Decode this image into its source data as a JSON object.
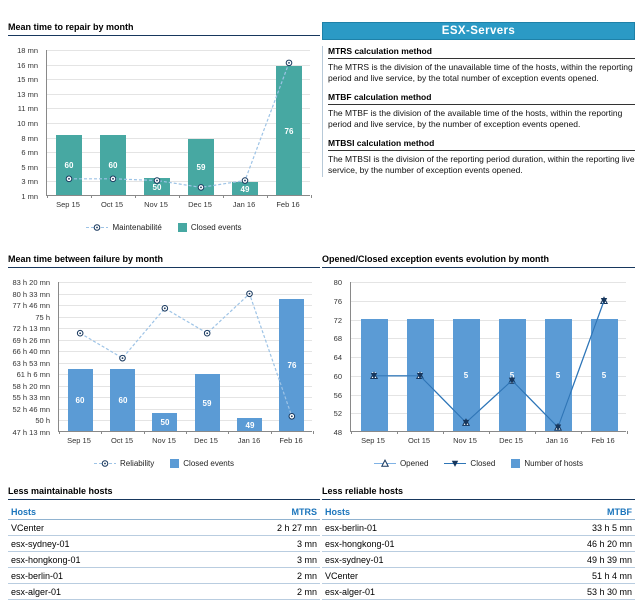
{
  "header": {
    "title": "ESX-Servers"
  },
  "methods": [
    {
      "heading": "MTRS calculation method",
      "body": "The MTRS is the division of the unavailable time of the hosts, within the reporting period and live service, by the total number of exception events opened."
    },
    {
      "heading": "MTBF calculation method",
      "body": "The MTBF is the division of the available time of the hosts, within the reporting period and live service, by the number of exception events opened."
    },
    {
      "heading": "MTBSI calculation method",
      "body": "The MTBSI is the division of the reporting period duration, within the reporting live service, by the number of exception events opened."
    }
  ],
  "chart_data": [
    {
      "type": "bar+line",
      "title": "Mean time to repair by month",
      "categories": [
        "Sep 15",
        "Oct 15",
        "Nov 15",
        "Dec 15",
        "Jan 16",
        "Feb 16"
      ],
      "y_ticks": [
        "18 mn",
        "16 mn",
        "15 mn",
        "13 mn",
        "11 mn",
        "10 mn",
        "8 mn",
        "6 mn",
        "5 mn",
        "3 mn",
        "1 mn"
      ],
      "y_axis": {
        "min": 1,
        "max": 18,
        "unit": "mn"
      },
      "bar_series": {
        "name": "Closed events",
        "values": [
          60,
          60,
          50,
          59,
          49,
          76
        ],
        "axis": {
          "min": 46,
          "max": 80
        },
        "color": "#47A8A2"
      },
      "line_series": {
        "name": "Maintenabilité",
        "values": [
          3,
          3,
          2.8,
          2,
          2.8,
          16.5
        ],
        "marker": "circle",
        "color": "#9DC3E6",
        "dash": true
      },
      "legend": [
        "Maintenabilité",
        "Closed events"
      ],
      "grid": true,
      "legend_position": "bottom"
    },
    {
      "type": "bar+line",
      "title": "Mean time between failure by month",
      "categories": [
        "Sep 15",
        "Oct 15",
        "Nov 15",
        "Dec 15",
        "Jan 16",
        "Feb 16"
      ],
      "y_ticks": [
        "83 h 20 mn",
        "80 h 33 mn",
        "77 h 46 mn",
        "75 h",
        "72 h 13 mn",
        "69 h 26 mn",
        "66 h 40 mn",
        "63 h 53 mn",
        "61 h 6 mn",
        "58 h 20 mn",
        "55 h 33 mn",
        "52 h 46 mn",
        "50 h",
        "47 h 13 mn"
      ],
      "y_axis": {
        "min": 47.217,
        "max": 83.333,
        "unit": "hours"
      },
      "bar_series": {
        "name": "Closed events",
        "values": [
          60,
          60,
          50,
          59,
          49,
          76
        ],
        "axis": {
          "min": 46,
          "max": 80
        },
        "color": "#5B9BD5"
      },
      "line_series": {
        "name": "Reliability",
        "values": [
          71,
          65,
          77,
          71,
          80.5,
          51
        ],
        "marker": "circle",
        "color": "#9DC3E6",
        "dash": true
      },
      "legend": [
        "Reliability",
        "Closed events"
      ],
      "grid": true,
      "legend_position": "bottom"
    },
    {
      "type": "bar+2lines",
      "title": "Opened/Closed exception events evolution by month",
      "categories": [
        "Sep 15",
        "Oct 15",
        "Nov 15",
        "Dec 15",
        "Jan 16",
        "Feb 16"
      ],
      "y_ticks": [
        "80",
        "76",
        "72",
        "68",
        "64",
        "60",
        "56",
        "52",
        "48"
      ],
      "y_axis": {
        "min": 48,
        "max": 80,
        "unit": "events"
      },
      "bar_series": {
        "name": "Number of hosts",
        "values": [
          5,
          5,
          5,
          5,
          5,
          5
        ],
        "axis": {
          "min": 0,
          "max": 6.67
        },
        "color": "#5B9BD5"
      },
      "line_series_list": [
        {
          "name": "Opened",
          "values": [
            60,
            60,
            50,
            59,
            49,
            76
          ],
          "marker": "triangle-up",
          "color": "#7FB2E5"
        },
        {
          "name": "Closed",
          "values": [
            60,
            60,
            50,
            59,
            49,
            76
          ],
          "marker": "triangle-down",
          "color": "#2E75B6"
        }
      ],
      "legend": [
        "Opened",
        "Closed",
        "Number of hosts"
      ],
      "grid": true,
      "legend_position": "bottom"
    }
  ],
  "tables": [
    {
      "title": "Less maintainable hosts",
      "columns": [
        "Hosts",
        "MTRS"
      ],
      "rows": [
        [
          "VCenter",
          "2 h 27 mn"
        ],
        [
          "esx-sydney-01",
          "3 mn"
        ],
        [
          "esx-hongkong-01",
          "3 mn"
        ],
        [
          "esx-berlin-01",
          "2 mn"
        ],
        [
          "esx-alger-01",
          "2 mn"
        ]
      ]
    },
    {
      "title": "Less reliable hosts",
      "columns": [
        "Hosts",
        "MTBF"
      ],
      "rows": [
        [
          "esx-berlin-01",
          "33 h 5 mn"
        ],
        [
          "esx-hongkong-01",
          "46 h 20 mn"
        ],
        [
          "esx-sydney-01",
          "49 h 39 mn"
        ],
        [
          "VCenter",
          "51 h 4 mn"
        ],
        [
          "esx-alger-01",
          "53 h 30 mn"
        ]
      ]
    }
  ],
  "colors": {
    "teal_bar": "#47A8A2",
    "blue_bar": "#5B9BD5",
    "panel_header_bg": "#2B9AC5",
    "marker_navy": "#17375D",
    "table_header_text": "#1B75BC",
    "title_underline": "#17375D"
  }
}
